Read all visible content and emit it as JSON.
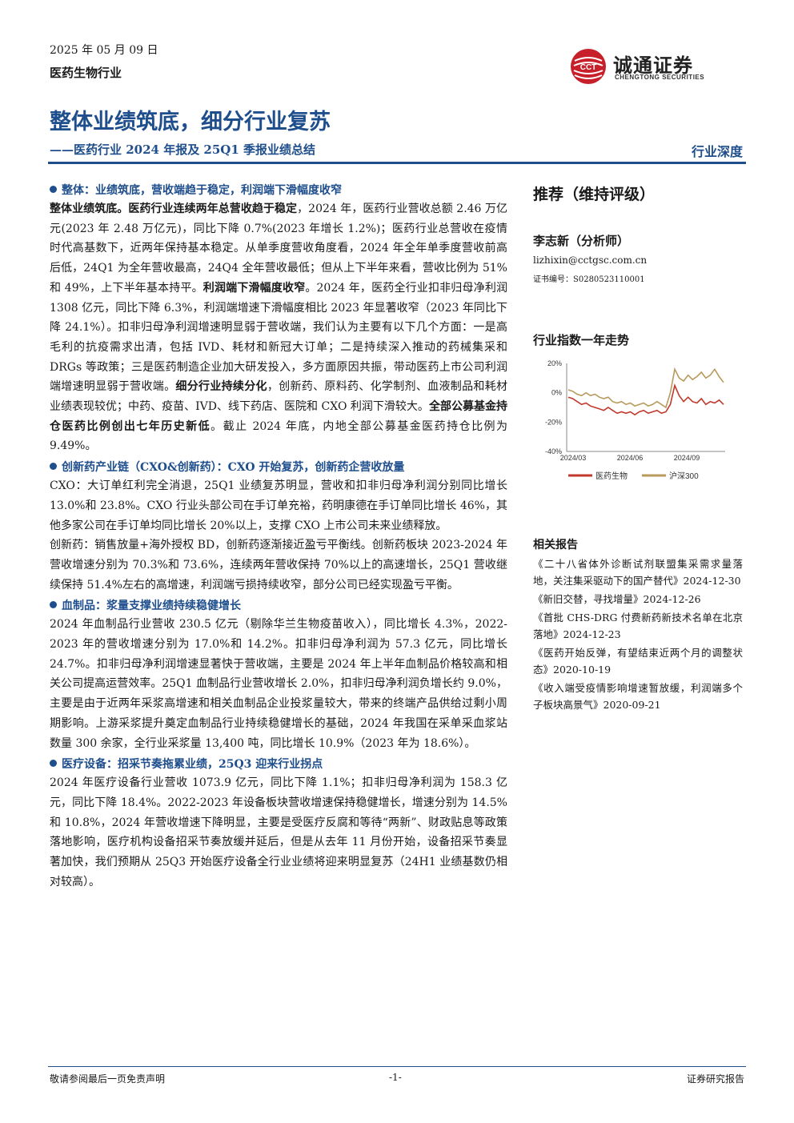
{
  "header": {
    "date": "2025 年 05 月 09 日",
    "industry": "医药生物行业",
    "logo_cn": "诚通证券",
    "logo_en": "CHENGTONG SECURITIES",
    "logo_mark": "CCT"
  },
  "title": "整体业绩筑底，细分行业复苏",
  "subtitle": "——医药行业 2024 年报及 25Q1 季报业绩总结",
  "report_type": "行业深度",
  "sections": [
    {
      "heading": "整体：业绩筑底，营收端趋于稳定，利润端下滑幅度收窄",
      "paragraphs": [
        [
          {
            "b": true,
            "t": "整体业绩筑底。医药行业连续两年总营收趋于稳定"
          },
          {
            "b": false,
            "t": "，2024 年，医药行业营收总额 2.46 万亿元(2023 年 2.48 万亿元)，同比下降 0.7%(2023 年增长 1.2%)；医药行业总营收在疫情时代高基数下，近两年保持基本稳定。从单季度营收角度看，2024 年全年单季度营收前高后低，24Q1 为全年营收最高，24Q4 全年营收最低；但从上下半年来看，营收比例为 51%和 49%，上下半年基本持平。"
          },
          {
            "b": true,
            "t": "利润端下滑幅度收窄"
          },
          {
            "b": false,
            "t": "。2024 年，医药全行业扣非归母净利润 1308 亿元，同比下降 6.3%，利润端增速下滑幅度相比 2023 年显著收窄（2023 年同比下降 24.1%）。扣非归母净利润增速明显弱于营收端，我们认为主要有以下几个方面：一是高毛利的抗疫需求出清，包括 IVD、耗材和新冠大订单；二是持续深入推动的药械集采和 DRGs 等政策；三是医药制造企业加大研发投入，多方面原因共振，带动医药上市公司利润端增速明显弱于营收端。"
          },
          {
            "b": true,
            "t": "细分行业持续分化"
          },
          {
            "b": false,
            "t": "，创新药、原料药、化学制剂、血液制品和耗材业绩表现较优；中药、疫苗、IVD、线下药店、医院和 CXO 利润下滑较大。"
          },
          {
            "b": true,
            "t": "全部公募基金持仓医药比例创出七年历史新低"
          },
          {
            "b": false,
            "t": "。截止 2024 年底，内地全部公募基金医药持仓比例为 9.49%。"
          }
        ]
      ]
    },
    {
      "heading": "创新药产业链（CXO&创新药）：CXO 开始复苏，创新药企营收放量",
      "paragraphs": [
        [
          {
            "b": false,
            "t": "CXO：大订单红利完全消退，25Q1 业绩复苏明显，营收和扣非归母净利润分别同比增长 13.0%和 23.8%。CXO 行业头部公司在手订单充裕，药明康德在手订单同比增长 46%，其他多家公司在手订单均同比增长 20%以上，支撑 CXO 上市公司未来业绩释放。"
          }
        ],
        [
          {
            "b": false,
            "t": "创新药：销售放量+海外授权 BD，创新药逐渐接近盈亏平衡线。创新药板块 2023-2024 年营收增速分别为 70.3%和 73.6%，连续两年营收保持 70%以上的高速增长，25Q1 营收继续保持 51.4%左右的高增速，利润端亏损持续收窄，部分公司已经实现盈亏平衡。"
          }
        ]
      ]
    },
    {
      "heading": "血制品：浆量支撑业绩持续稳健增长",
      "paragraphs": [
        [
          {
            "b": false,
            "t": "2024 年血制品行业营收 230.5 亿元（剔除华兰生物疫苗收入），同比增长 4.3%，2022-2023 年的营收增速分别为 17.0%和 14.2%。扣非归母净利润为 57.3 亿元，同比增长 24.7%。扣非归母净利润增速显著快于营收端，主要是 2024 年上半年血制品价格较高和相关公司提高运营效率。25Q1 血制品行业营收增长 2.0%，扣非归母净利润负增长约 9.0%，主要是由于近两年采浆高增速和相关血制品企业投浆量较大，带来的终端产品供给过剩小周期影响。上游采浆提升奠定血制品行业持续稳健增长的基础，2024 年我国在采单采血浆站数量 300 余家，全行业采浆量 13,400 吨，同比增长 10.9%（2023 年为 18.6%）。"
          }
        ]
      ]
    },
    {
      "heading": "医疗设备：招采节奏拖累业绩，25Q3 迎来行业拐点",
      "paragraphs": [
        [
          {
            "b": false,
            "t": "2024 年医疗设备行业营收 1073.9 亿元，同比下降 1.1%；扣非归母净利润为 158.3 亿元，同比下降 18.4%。2022-2023 年设备板块营收增速保持稳健增长，增速分别为 14.5%和 10.8%，2024 年营收增速下降明显，主要是受医疗反腐和等待“两新”、财政贴息等政策落地影响，医疗机构设备招采节奏放缓并延后，但是从去年 11 月份开始，设备招采节奏显著加快，我们预期从 25Q3 开始医疗设备全行业业绩将迎来明显复苏（24H1 业绩基数仍相对较高）。"
          }
        ]
      ]
    }
  ],
  "sidebar": {
    "rating": "推荐（维持评级）",
    "analyst": "李志新（分析师）",
    "email": "lizhixin@cctgsc.com.cn",
    "cert": "证书编号：S0280523110001",
    "chart_title": "行业指数一年走势",
    "related_title": "相关报告",
    "related": [
      "《二十八省体外诊断试剂联盟集采需求量落地，关注集采驱动下的国产替代》2024-12-30",
      "《新旧交替，寻找增量》2024-12-26",
      "《首批 CHS-DRG 付费新药新技术名单在北京落地》2024-12-23",
      "《医药开始反弹，有望结束近两个月的调整状态》2020-10-19",
      "《收入端受疫情影响增速暂放缓，利润端多个子板块高景气》2020-09-21"
    ]
  },
  "chart_data": {
    "type": "line",
    "title": "行业指数一年走势",
    "x_ticks": [
      "2024/03",
      "2024/06",
      "2024/09"
    ],
    "y_ticks": [
      "20%",
      "0%",
      "-20%",
      "-40%"
    ],
    "ylim": [
      -40,
      20
    ],
    "x_range": [
      "2024/01",
      "2025/05"
    ],
    "series": [
      {
        "name": "医药生物",
        "color": "#c0392b",
        "values": [
          -3,
          -4,
          -6,
          -8,
          -7,
          -9,
          -10,
          -11,
          -12,
          -10,
          -12,
          -14,
          -13,
          -14,
          -13,
          -15,
          -13,
          -12,
          -14,
          -13,
          -12,
          -14,
          -13,
          -8,
          5,
          -2,
          -6,
          -3,
          -6,
          -7,
          -4,
          -8,
          -6,
          -7,
          -5,
          -8
        ]
      },
      {
        "name": "沪深300",
        "color": "#b89a5c",
        "values": [
          2,
          1,
          -1,
          -2,
          0,
          -2,
          -1,
          -3,
          -4,
          -3,
          -6,
          -7,
          -6,
          -8,
          -7,
          -9,
          -8,
          -7,
          -9,
          -8,
          -6,
          -8,
          -10,
          0,
          16,
          10,
          8,
          12,
          9,
          11,
          14,
          10,
          12,
          16,
          11,
          7
        ]
      }
    ],
    "legend": "bottom",
    "grid": false
  },
  "footer": {
    "left": "敬请参阅最后一页免责声明",
    "page": "-1-",
    "right": "证券研究报告"
  },
  "colors": {
    "brand": "#1f4e8c",
    "logo_red": "#c8202a"
  }
}
